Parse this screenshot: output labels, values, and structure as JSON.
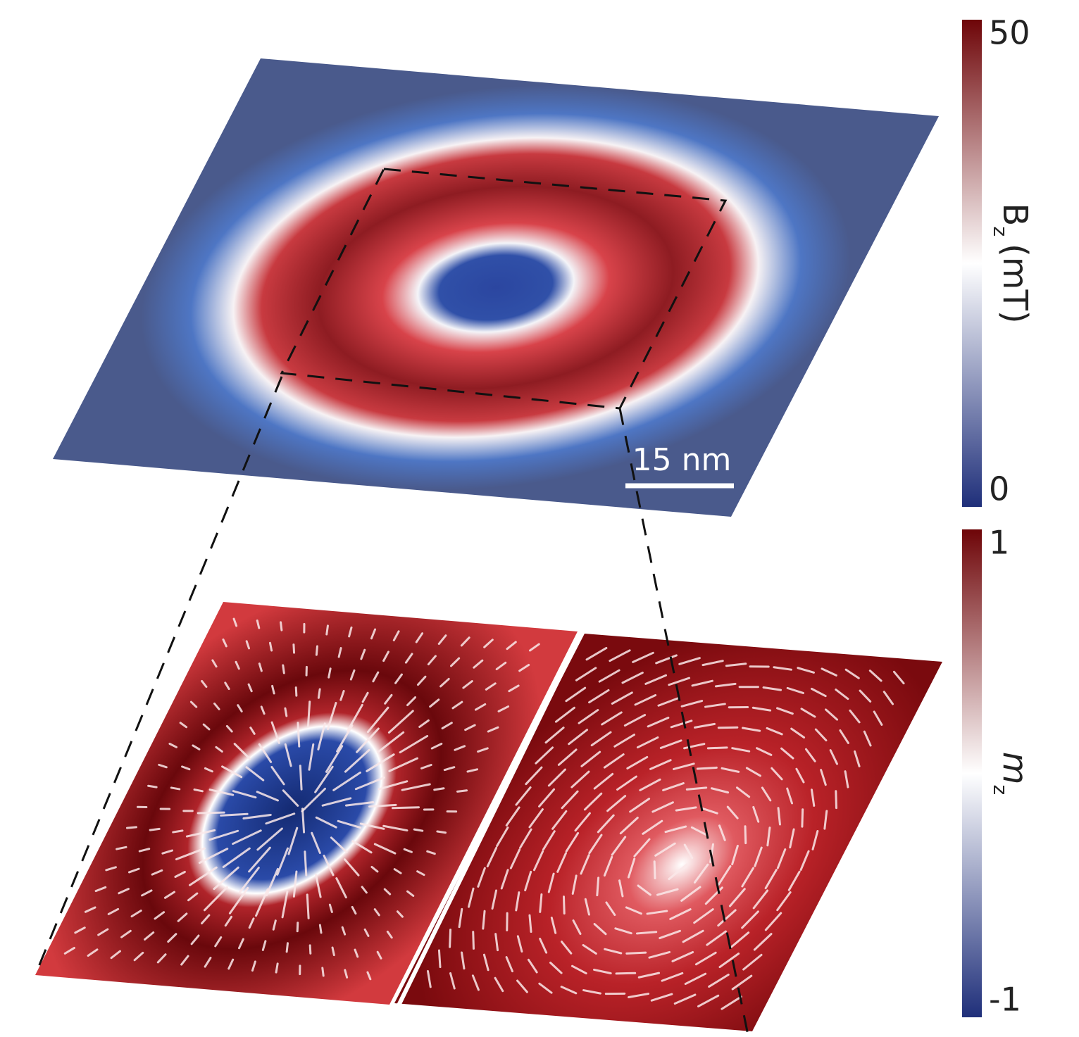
{
  "colorbars": [
    {
      "label": "B",
      "label_sub": "z",
      "label_unit": "(mT)",
      "ticks": [
        0,
        50
      ],
      "colors": [
        "#1f2f7a",
        "#ffffff",
        "#6e0508"
      ]
    },
    {
      "label": "m",
      "label_sub": "z",
      "label_unit": "",
      "ticks": [
        -1,
        1
      ],
      "colors": [
        "#1f2f7a",
        "#ffffff",
        "#6e0508"
      ]
    }
  ],
  "scale_bar": "15 nm"
}
